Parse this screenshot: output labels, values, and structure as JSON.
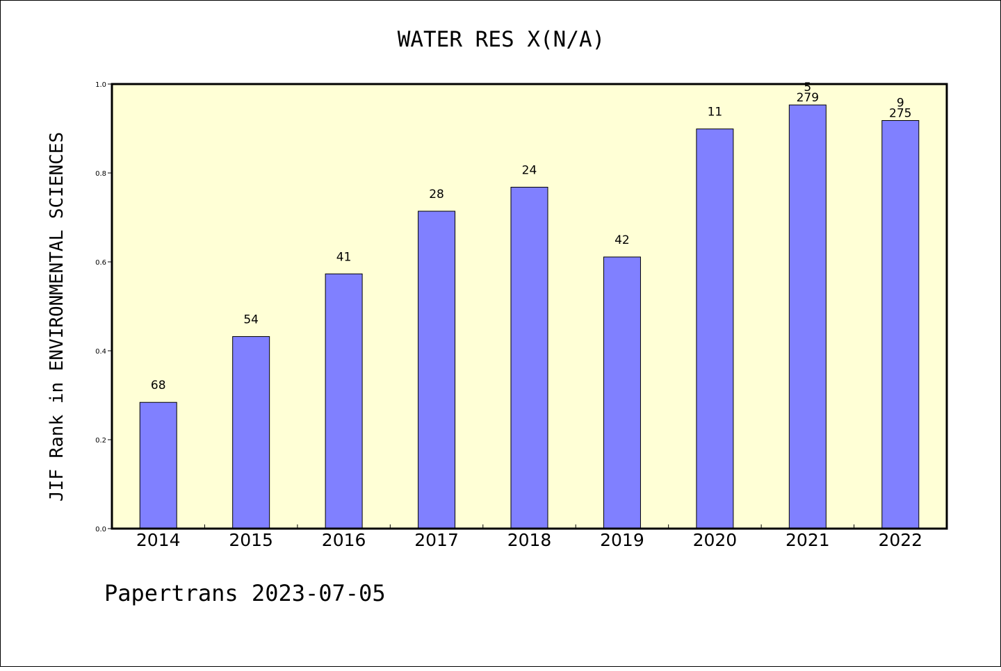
{
  "chart_data": {
    "type": "bar",
    "title": "WATER RES X(N/A)",
    "ylabel": "JIF Rank in ENVIRONMENTAL SCIENCES",
    "xlabel": "",
    "categories": [
      "2014",
      "2015",
      "2016",
      "2017",
      "2018",
      "2019",
      "2020",
      "2021",
      "2022"
    ],
    "values": [
      0.284,
      0.432,
      0.573,
      0.714,
      0.768,
      0.611,
      0.899,
      0.953,
      0.918
    ],
    "rank_labels": [
      "68",
      "54",
      "41",
      "28",
      "24",
      "42",
      "11",
      "5",
      "9"
    ],
    "total_labels": [
      "",
      "",
      "",
      "",
      "",
      "",
      "",
      "279",
      "275"
    ],
    "ylim": [
      0,
      1.0
    ],
    "yticks": [
      "0.0",
      "0.2",
      "0.4",
      "0.6",
      "0.8",
      "1.0"
    ],
    "grid": false,
    "colors": {
      "bar": "#8080ff",
      "plot_background": "#ffffd6",
      "axis": "#000000"
    }
  },
  "footer": "Papertrans 2023-07-05"
}
